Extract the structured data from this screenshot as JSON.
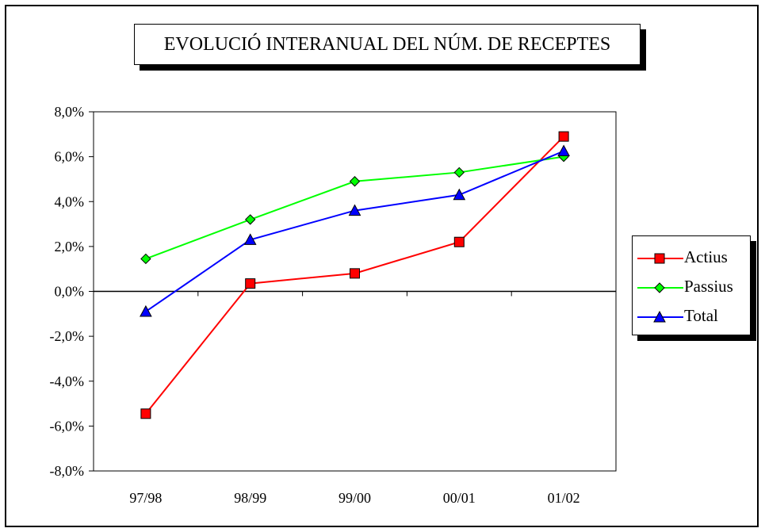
{
  "chart_data": {
    "type": "line",
    "title": "EVOLUCIÓ INTERANUAL DEL NÚM. DE RECEPTES",
    "categories": [
      "97/98",
      "98/99",
      "99/00",
      "00/01",
      "01/02"
    ],
    "ylim": [
      -0.08,
      0.08
    ],
    "yticks": [
      0.08,
      0.06,
      0.04,
      0.02,
      0.0,
      -0.02,
      -0.04,
      -0.06,
      -0.08
    ],
    "ytick_labels": [
      "8,0%",
      "6,0%",
      "4,0%",
      "2,0%",
      "0,0%",
      "-2,0%",
      "-4,0%",
      "-6,0%",
      "-8,0%"
    ],
    "grid": false,
    "legend_position": "right",
    "series": [
      {
        "name": "Actius",
        "color": "#ff0000",
        "marker": "square",
        "values": [
          -0.0545,
          0.0035,
          0.008,
          0.022,
          0.069
        ]
      },
      {
        "name": "Passius",
        "color": "#00ff00",
        "marker": "diamond",
        "values": [
          0.0145,
          0.032,
          0.049,
          0.053,
          0.06
        ]
      },
      {
        "name": "Total",
        "color": "#0000ff",
        "marker": "triangle",
        "values": [
          -0.009,
          0.023,
          0.036,
          0.043,
          0.0625
        ]
      }
    ]
  }
}
